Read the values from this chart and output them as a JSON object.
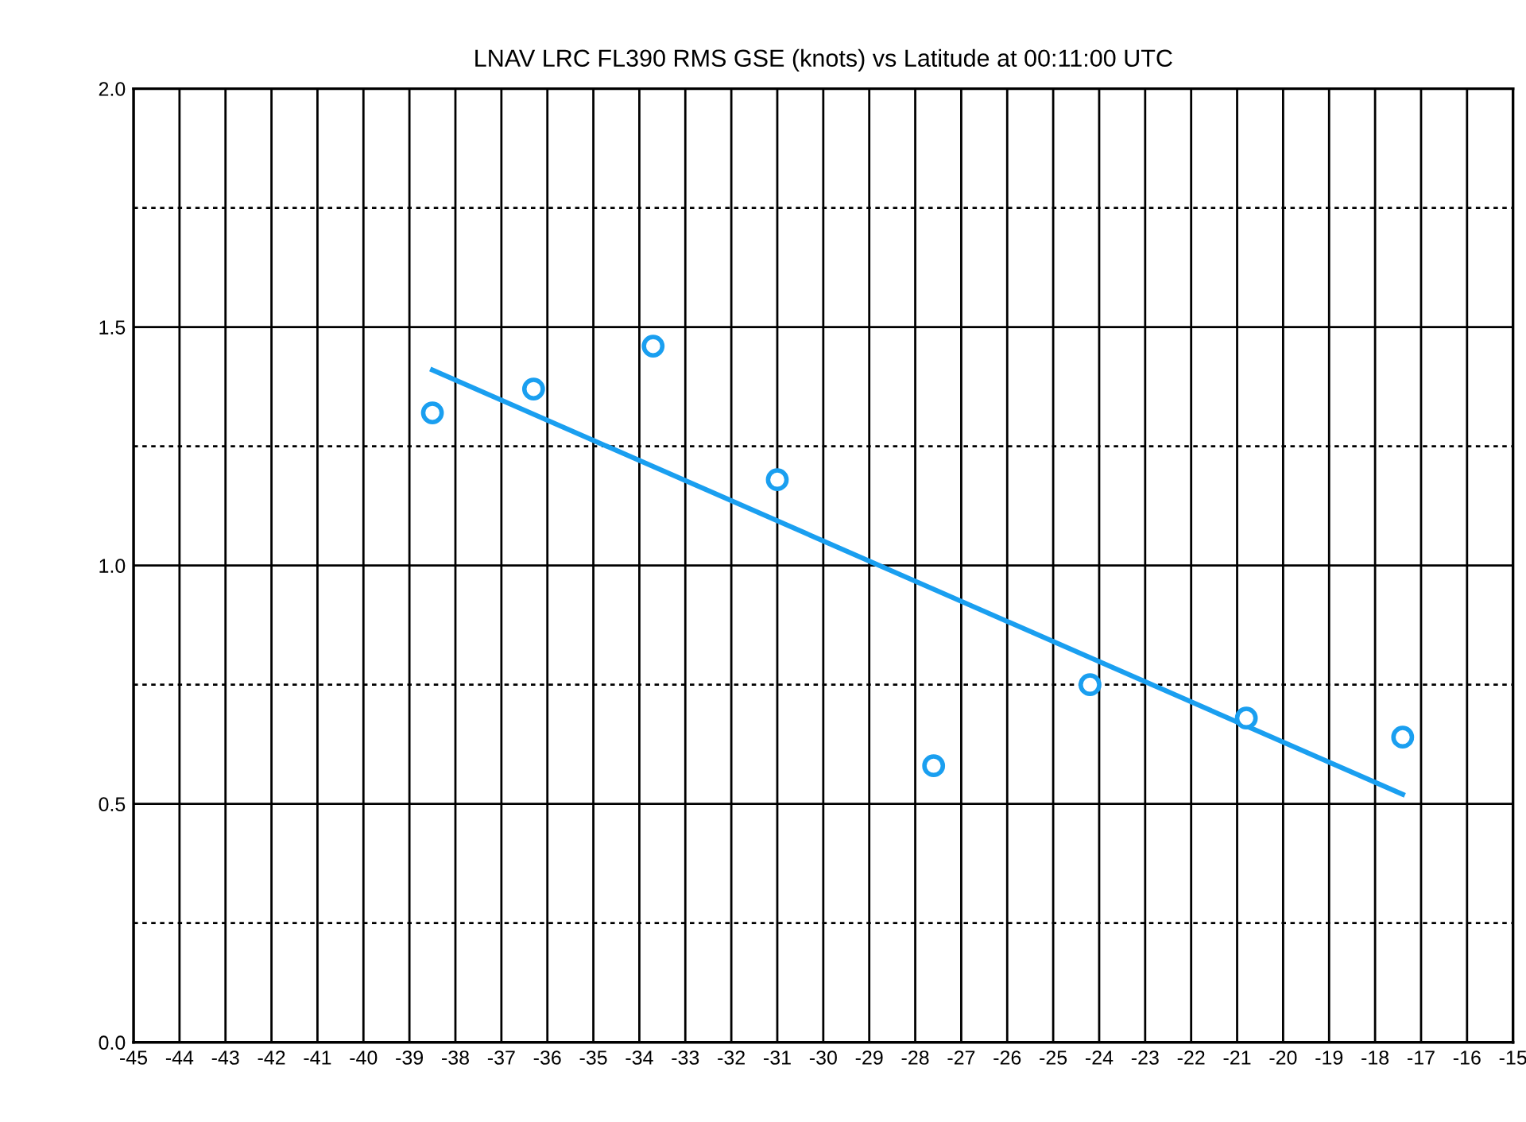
{
  "chart_data": {
    "type": "scatter",
    "title": "LNAV LRC FL390 RMS GSE (knots) vs Latitude at 00:11:00 UTC",
    "x": [
      -38.5,
      -36.3,
      -33.7,
      -31.0,
      -27.6,
      -24.2,
      -20.8,
      -17.4
    ],
    "series": [
      {
        "color": "#1a9ff0",
        "marker": "circle",
        "values": [
          1.32,
          1.37,
          1.46,
          1.18,
          0.58,
          0.75,
          0.68,
          0.64
        ]
      },
      {
        "type": "line",
        "color": "#1a9ff0",
        "x": [
          -38.5,
          -17.4
        ],
        "values": [
          1.41,
          0.52
        ],
        "line_style": "solid"
      }
    ],
    "xlim": [
      -45,
      -15
    ],
    "xticks": [
      -45,
      -44,
      -43,
      -42,
      -41,
      -40,
      -39,
      -38,
      -37,
      -36,
      -35,
      -34,
      -33,
      -32,
      -31,
      -30,
      -29,
      -28,
      -27,
      -26,
      -25,
      -24,
      -23,
      -22,
      -21,
      -20,
      -19,
      -18,
      -17,
      -16,
      -15
    ],
    "ylim": [
      0,
      2
    ],
    "yticks": [
      {
        "value": 0,
        "label": "0.0"
      },
      {
        "value": 0.25,
        "label": null
      },
      {
        "value": 0.5,
        "label": "0.5"
      },
      {
        "value": 0.75,
        "label": null
      },
      {
        "value": 1,
        "label": "1.0"
      },
      {
        "value": 1.25,
        "label": null
      },
      {
        "value": 1.5,
        "label": "1.5"
      },
      {
        "value": 1.75,
        "label": null
      },
      {
        "value": 2,
        "label": "2.0"
      }
    ],
    "grid": true,
    "legend": false
  }
}
